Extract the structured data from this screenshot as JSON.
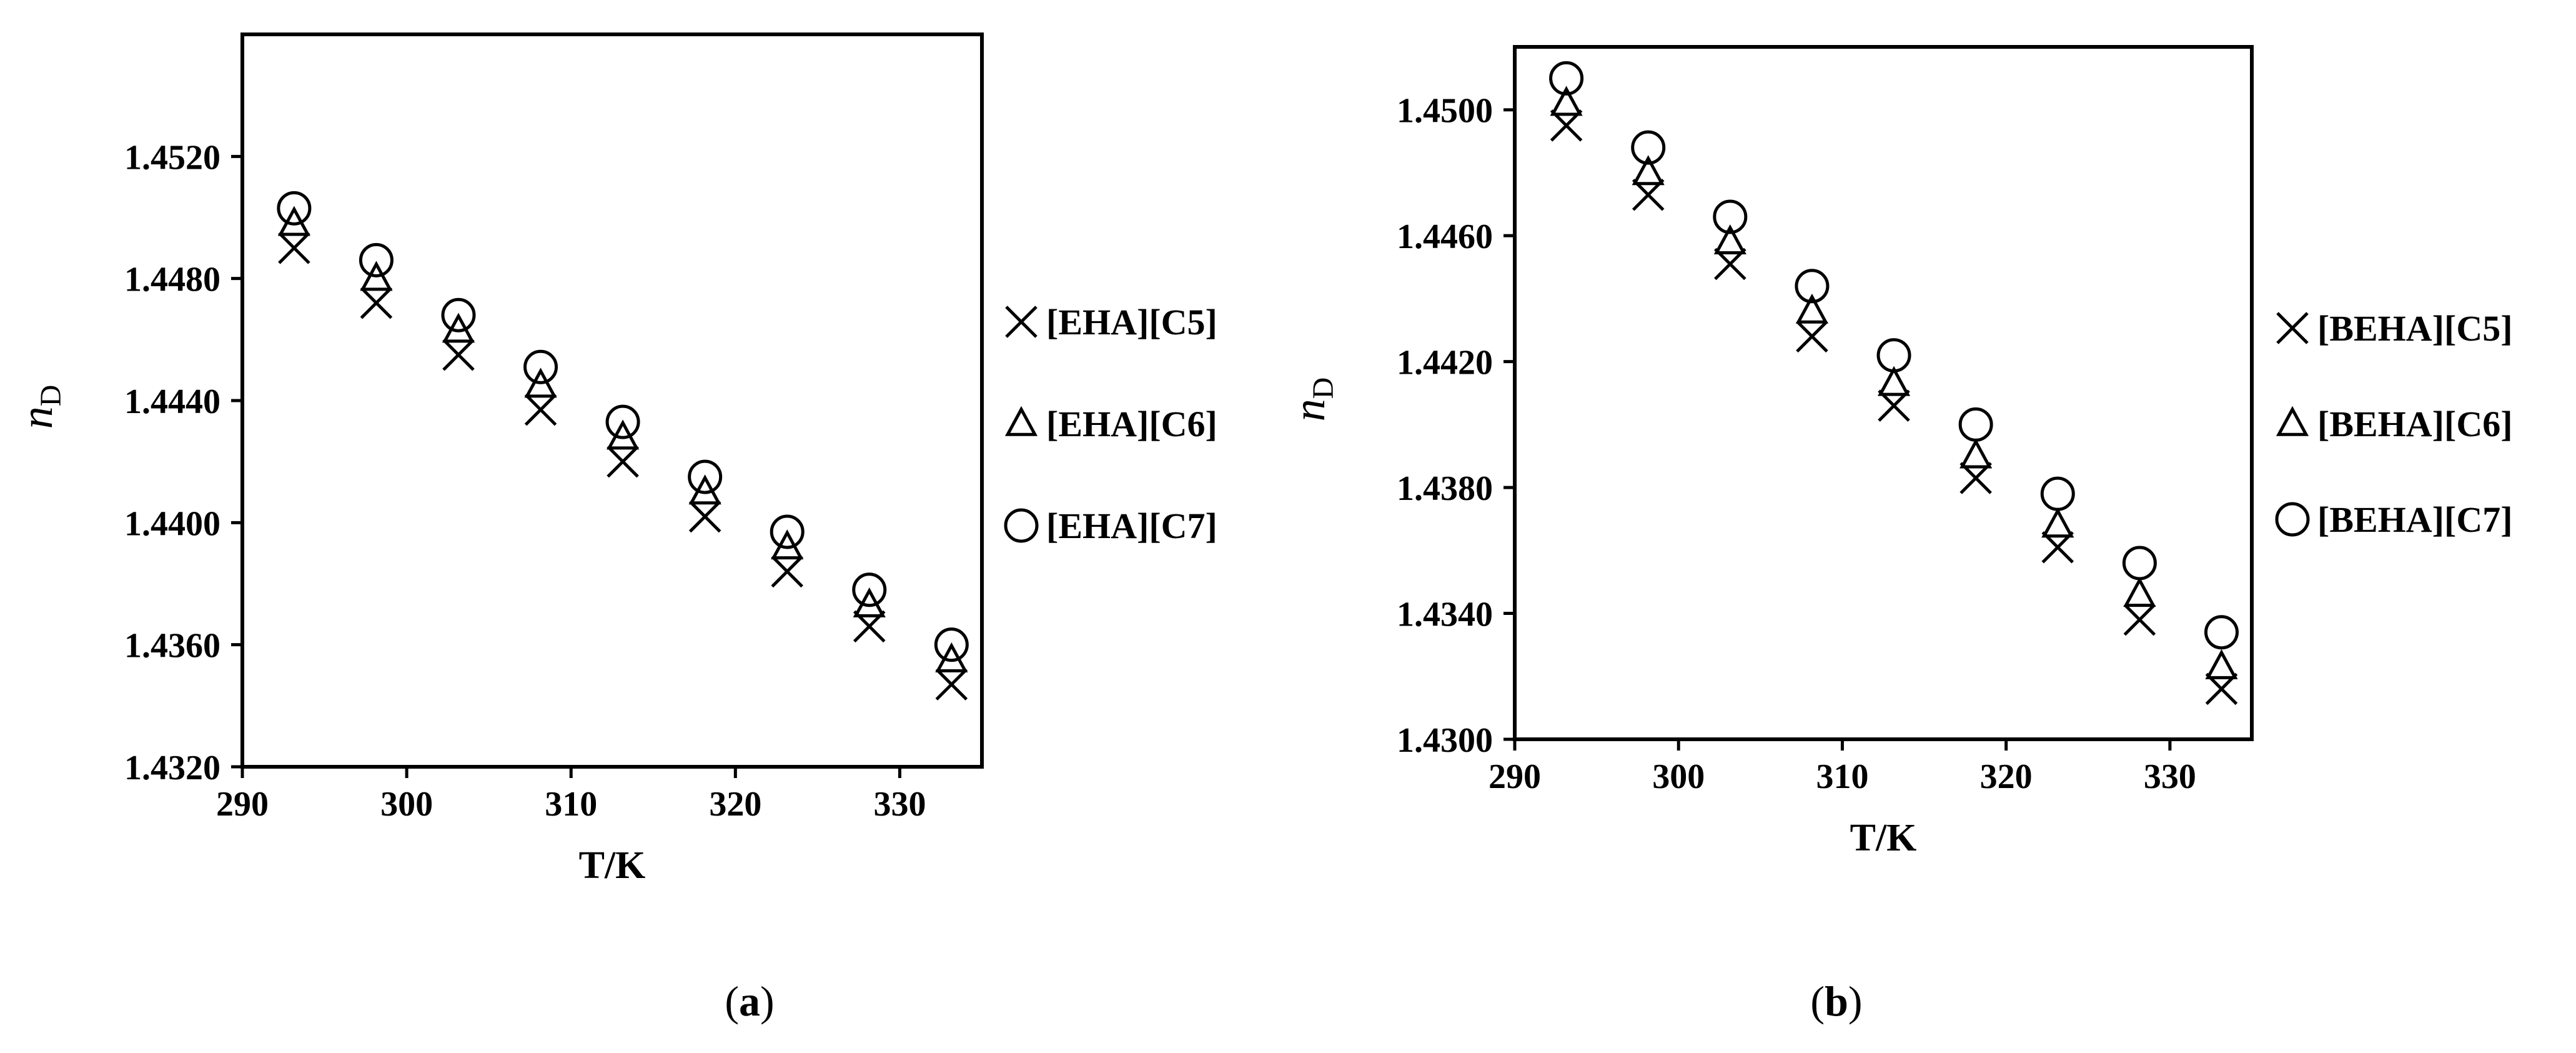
{
  "chart_data": [
    {
      "type": "scatter",
      "panel_label": "(a)",
      "xlabel": "T/K",
      "ylabel": "n",
      "ylabel_subscript": "D",
      "xlim": [
        290,
        335
      ],
      "ylim": [
        1.432,
        1.456
      ],
      "x_ticks": [
        "290",
        "300",
        "310",
        "320",
        "330"
      ],
      "y_ticks": [
        "1.4320",
        "1.4360",
        "1.4400",
        "1.4440",
        "1.4480",
        "1.4520"
      ],
      "legend_position": "right",
      "grid": false,
      "x": [
        293.15,
        298.15,
        303.15,
        308.15,
        313.15,
        318.15,
        323.15,
        328.15,
        333.15
      ],
      "series": [
        {
          "name": "[EHA][C5]",
          "marker": "cross",
          "values": [
            1.449,
            1.4472,
            1.4455,
            1.4437,
            1.442,
            1.4402,
            1.4384,
            1.4366,
            1.4347
          ]
        },
        {
          "name": "[EHA][C6]",
          "marker": "triangle",
          "values": [
            1.4498,
            1.448,
            1.4463,
            1.4445,
            1.4428,
            1.441,
            1.4392,
            1.4373,
            1.4355
          ]
        },
        {
          "name": "[EHA][C7]",
          "marker": "circle",
          "values": [
            1.4503,
            1.4486,
            1.4468,
            1.4451,
            1.4433,
            1.4415,
            1.4397,
            1.4378,
            1.436
          ]
        }
      ]
    },
    {
      "type": "scatter",
      "panel_label": "(b)",
      "xlabel": "T/K",
      "ylabel": "n",
      "ylabel_subscript": "D",
      "xlim": [
        290,
        335
      ],
      "ylim": [
        1.43,
        1.452
      ],
      "x_ticks": [
        "290",
        "300",
        "310",
        "320",
        "330"
      ],
      "y_ticks": [
        "1.4300",
        "1.4340",
        "1.4380",
        "1.4420",
        "1.4460",
        "1.4500"
      ],
      "legend_position": "right",
      "grid": false,
      "x": [
        293.15,
        298.15,
        303.15,
        308.15,
        313.15,
        318.15,
        323.15,
        328.15,
        333.15
      ],
      "series": [
        {
          "name": "[BEHA][C5]",
          "marker": "cross",
          "values": [
            1.4495,
            1.4473,
            1.4451,
            1.4428,
            1.4406,
            1.4383,
            1.4361,
            1.4338,
            1.4316
          ]
        },
        {
          "name": "[BEHA][C6]",
          "marker": "triangle",
          "values": [
            1.4502,
            1.448,
            1.4458,
            1.4436,
            1.4413,
            1.439,
            1.4368,
            1.4346,
            1.4323
          ]
        },
        {
          "name": "[BEHA][C7]",
          "marker": "circle",
          "values": [
            1.451,
            1.4488,
            1.4466,
            1.4444,
            1.4422,
            1.44,
            1.4378,
            1.4356,
            1.4334
          ]
        }
      ]
    }
  ]
}
